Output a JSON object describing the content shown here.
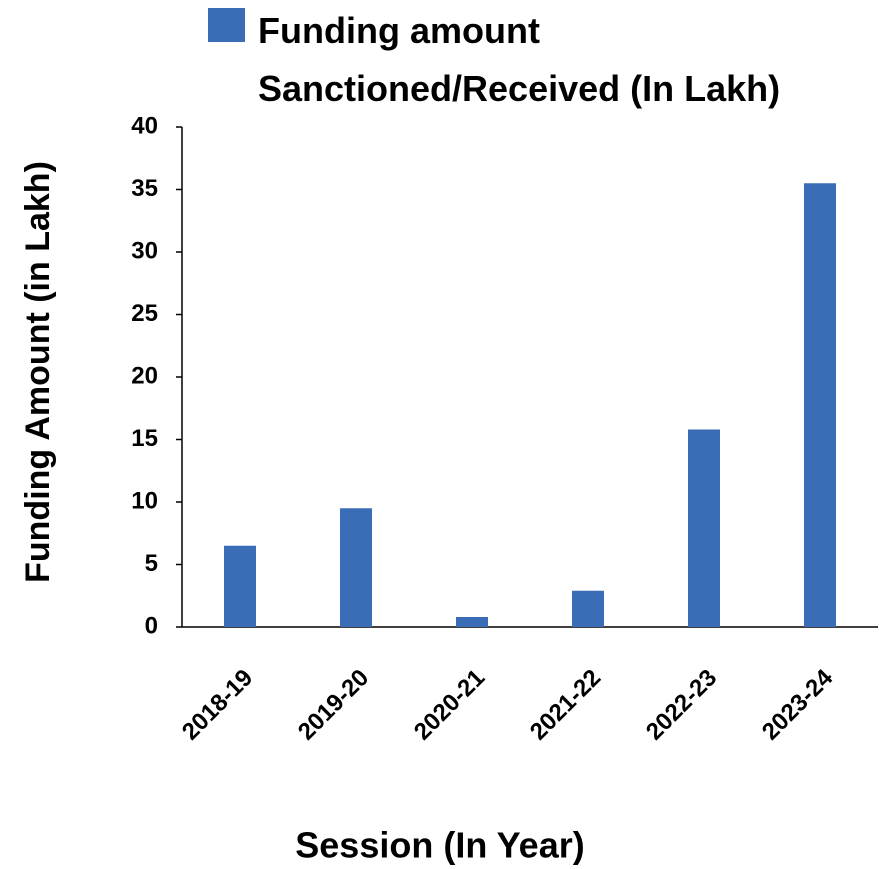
{
  "chart_data": {
    "type": "bar",
    "x_label": "Session (In Year)",
    "y_label": "Funding Amount (in Lakh)",
    "categories": [
      "2018-19",
      "2019-20",
      "2020-21",
      "2021-22",
      "2022-23",
      "2023-24"
    ],
    "series": [
      {
        "name": "Funding amount Sanctioned/Received (In Lakh)",
        "color": "#3a6db5",
        "values": [
          6.5,
          9.5,
          0.8,
          2.9,
          15.8,
          35.5
        ]
      }
    ],
    "ylim": [
      0,
      40
    ],
    "yticks": [
      0,
      5,
      10,
      15,
      20,
      25,
      30,
      35,
      40
    ],
    "grid": false,
    "legend": "top"
  }
}
